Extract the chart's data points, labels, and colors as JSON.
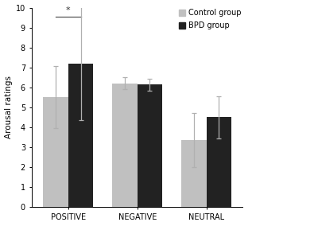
{
  "categories": [
    "POSITIVE",
    "NEGATIVE",
    "NEUTRAL"
  ],
  "control_values": [
    5.5,
    6.2,
    3.35
  ],
  "bpd_values": [
    7.2,
    6.15,
    4.5
  ],
  "control_errors": [
    1.55,
    0.3,
    1.35
  ],
  "bpd_errors": [
    2.85,
    0.3,
    1.05
  ],
  "control_color": "#c0c0c0",
  "bpd_color": "#222222",
  "error_color": "#b0b0b0",
  "ylabel": "Arousal ratings",
  "ylim": [
    0,
    10
  ],
  "yticks": [
    0,
    1,
    2,
    3,
    4,
    5,
    6,
    7,
    8,
    9,
    10
  ],
  "bar_width": 0.38,
  "legend_labels": [
    "Control group",
    "BPD group"
  ],
  "sig_label": "*",
  "background_color": "#ffffff",
  "label_fontsize": 7.5,
  "tick_fontsize": 7,
  "legend_fontsize": 7
}
